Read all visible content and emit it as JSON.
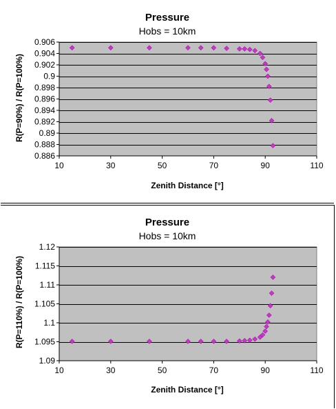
{
  "chart_data": [
    {
      "type": "scatter",
      "title": "Pressure",
      "subtitle": "Hobs = 10km",
      "xlabel": "Zenith Distance [°]",
      "ylabel": "R(P=90%) / R(P=100%)",
      "xlim": [
        10,
        110
      ],
      "ylim": [
        0.886,
        0.906
      ],
      "x_ticks": [
        10,
        30,
        50,
        70,
        90,
        110
      ],
      "x_tick_labels": [
        "10",
        "30",
        "50",
        "70",
        "90",
        "110"
      ],
      "y_ticks": [
        0.886,
        0.888,
        0.89,
        0.892,
        0.894,
        0.896,
        0.898,
        0.9,
        0.902,
        0.904,
        0.906
      ],
      "y_tick_labels": [
        "0.886",
        "0.888",
        "0.89",
        "0.892",
        "0.894",
        "0.896",
        "0.898",
        "0.9",
        "0.902",
        "0.904",
        "0.906"
      ],
      "grid": true,
      "marker_color": "#cc33cc",
      "plot_bg": "#c0c0c0",
      "x": [
        15,
        30,
        45,
        60,
        65,
        70,
        75,
        80,
        82,
        84,
        86,
        88,
        89,
        90,
        90.5,
        91,
        91.5,
        92,
        92.5,
        93
      ],
      "y": [
        0.905,
        0.905,
        0.905,
        0.905,
        0.905,
        0.905,
        0.9049,
        0.9048,
        0.9048,
        0.9047,
        0.9045,
        0.904,
        0.9033,
        0.9022,
        0.9012,
        0.9,
        0.8982,
        0.8958,
        0.8922,
        0.8878
      ]
    },
    {
      "type": "scatter",
      "title": "Pressure",
      "subtitle": "Hobs = 10km",
      "xlabel": "Zenith Distance [°]",
      "ylabel": "R(P=110%) / R(P=100%)",
      "xlim": [
        10,
        110
      ],
      "ylim": [
        1.09,
        1.12
      ],
      "x_ticks": [
        10,
        30,
        50,
        70,
        90,
        110
      ],
      "x_tick_labels": [
        "10",
        "30",
        "50",
        "70",
        "90",
        "110"
      ],
      "y_ticks": [
        1.09,
        1.095,
        1.1,
        1.105,
        1.11,
        1.115,
        1.12
      ],
      "y_tick_labels": [
        "1.09",
        "1.095",
        "1.1",
        "1.105",
        "1.11",
        "1.115",
        "1.12"
      ],
      "grid": true,
      "marker_color": "#cc33cc",
      "plot_bg": "#c0c0c0",
      "x": [
        15,
        30,
        45,
        60,
        65,
        70,
        75,
        80,
        82,
        84,
        86,
        88,
        89,
        90,
        90.5,
        91,
        91.5,
        92,
        92.5,
        93
      ],
      "y": [
        1.0951,
        1.0951,
        1.0951,
        1.0951,
        1.0951,
        1.0951,
        1.0951,
        1.0952,
        1.0953,
        1.0954,
        1.0957,
        1.0962,
        1.0968,
        1.0978,
        1.099,
        1.1002,
        1.102,
        1.1045,
        1.1078,
        1.112
      ]
    }
  ]
}
